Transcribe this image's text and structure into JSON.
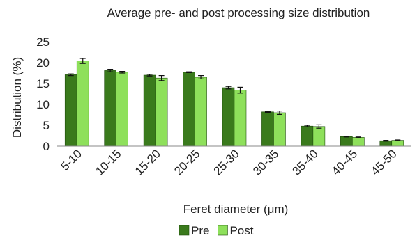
{
  "chart_data": {
    "type": "bar",
    "title": "Average pre- and post processing size distribution",
    "xlabel": "Feret diameter (μm)",
    "ylabel": "Distribution (%)",
    "ylim": [
      0,
      25
    ],
    "yticks": [
      0,
      5,
      10,
      15,
      20,
      25
    ],
    "grid": false,
    "legend_position": "bottom",
    "categories": [
      "5-10",
      "10-15",
      "15-20",
      "20-25",
      "25-30",
      "30-35",
      "35-40",
      "40-45",
      "45-50"
    ],
    "series": [
      {
        "name": "Pre",
        "color": "#3a7a1c",
        "values": [
          17.1,
          18.1,
          17.0,
          17.7,
          14.0,
          8.2,
          4.8,
          2.3,
          1.3
        ],
        "errors": [
          0.2,
          0.3,
          0.2,
          0.1,
          0.3,
          0.1,
          0.2,
          0.1,
          0.1
        ]
      },
      {
        "name": "Post",
        "color": "#8ee05b",
        "values": [
          20.4,
          17.7,
          16.3,
          16.5,
          13.4,
          8.0,
          4.7,
          2.1,
          1.4
        ],
        "errors": [
          0.6,
          0.2,
          0.6,
          0.4,
          0.7,
          0.4,
          0.4,
          0.1,
          0.1
        ]
      }
    ]
  }
}
